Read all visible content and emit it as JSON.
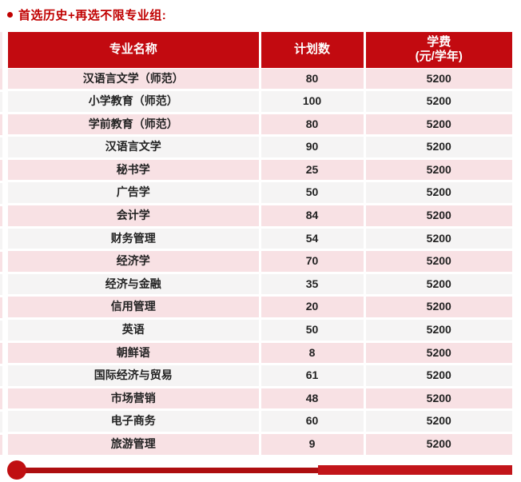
{
  "title": {
    "text": "首选历史+再选不限专业组:"
  },
  "table": {
    "columns": [
      {
        "label": "专业名称"
      },
      {
        "label": "计划数"
      },
      {
        "label": "学费",
        "sublabel": "(元/学年)"
      }
    ],
    "rows": [
      {
        "name": "汉语言文学（师范）",
        "plan": "80",
        "fee": "5200"
      },
      {
        "name": "小学教育（师范）",
        "plan": "100",
        "fee": "5200"
      },
      {
        "name": "学前教育（师范）",
        "plan": "80",
        "fee": "5200"
      },
      {
        "name": "汉语言文学",
        "plan": "90",
        "fee": "5200"
      },
      {
        "name": "秘书学",
        "plan": "25",
        "fee": "5200"
      },
      {
        "name": "广告学",
        "plan": "50",
        "fee": "5200"
      },
      {
        "name": "会计学",
        "plan": "84",
        "fee": "5200"
      },
      {
        "name": "财务管理",
        "plan": "54",
        "fee": "5200"
      },
      {
        "name": "经济学",
        "plan": "70",
        "fee": "5200"
      },
      {
        "name": "经济与金融",
        "plan": "35",
        "fee": "5200"
      },
      {
        "name": "信用管理",
        "plan": "20",
        "fee": "5200"
      },
      {
        "name": "英语",
        "plan": "50",
        "fee": "5200"
      },
      {
        "name": "朝鲜语",
        "plan": "8",
        "fee": "5200"
      },
      {
        "name": "国际经济与贸易",
        "plan": "61",
        "fee": "5200"
      },
      {
        "name": "市场营销",
        "plan": "48",
        "fee": "5200"
      },
      {
        "name": "电子商务",
        "plan": "60",
        "fee": "5200"
      },
      {
        "name": "旅游管理",
        "plan": "9",
        "fee": "5200"
      }
    ]
  },
  "colors": {
    "header-red": "#c20a10",
    "title-red": "#c00000",
    "row-pink": "#f8e1e4",
    "row-gray": "#f5f4f4",
    "text-dark": "#222222",
    "header-text": "#ffffff",
    "line-red": "#ad0e10",
    "bar-red": "#c2151a",
    "knob-red": "#c00f12",
    "sliver-pale": "#f7e9eb"
  }
}
